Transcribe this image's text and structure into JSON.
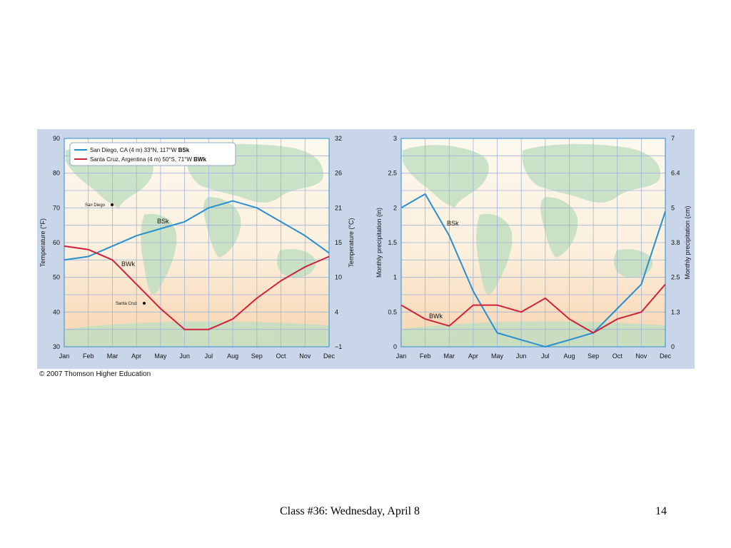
{
  "slide": {
    "footer_title": "Class #36: Wednesday, April 8",
    "page_number": "14",
    "copyright": "© 2007 Thomson Higher Education"
  },
  "colors": {
    "san_diego": "#2a8fd0",
    "santa_cruz": "#d0203a"
  },
  "chart_data": [
    {
      "type": "line",
      "months": [
        "Jan",
        "Feb",
        "Mar",
        "Apr",
        "May",
        "Jun",
        "Jul",
        "Aug",
        "Sep",
        "Oct",
        "Nov",
        "Dec"
      ],
      "ylabel": "Temperature (°F)",
      "y2label": "Temperature (°C)",
      "ylim": [
        30,
        90
      ],
      "yticks": [
        "90",
        "80",
        "70",
        "60",
        "50",
        "40",
        "30"
      ],
      "y2ticks": [
        "32",
        "26",
        "21",
        "15",
        "10",
        "4",
        "−1"
      ],
      "grid": true,
      "legend_position": "top-left",
      "series": [
        {
          "name": "San Diego, CA (4 m) 33°N, 117°W",
          "climate": "BSk",
          "color": "#2a8fd0",
          "values": [
            55,
            56,
            59,
            62,
            64,
            66,
            70,
            72,
            70,
            66,
            62,
            57
          ]
        },
        {
          "name": "Santa Cruz, Argentina (4 m) 50°S, 71°W",
          "climate": "BWk",
          "color": "#d0203a",
          "values": [
            59,
            58,
            55,
            48,
            41,
            35,
            35,
            38,
            44,
            49,
            53,
            56
          ]
        }
      ],
      "labels": {
        "bsk": "BSk",
        "bwk": "BWk"
      },
      "map_markers": {
        "san_diego": "San Diego",
        "santa_cruz": "Santa Cruz"
      }
    },
    {
      "type": "line",
      "months": [
        "Jan",
        "Feb",
        "Mar",
        "Apr",
        "May",
        "Jun",
        "Jul",
        "Aug",
        "Sep",
        "Oct",
        "Nov",
        "Dec"
      ],
      "ylabel": "Monthly precipitation (in)",
      "y2label": "Monthly precipitation (cm)",
      "ylim": [
        0,
        3
      ],
      "yticks": [
        "3",
        "2.5",
        "2",
        "1.5",
        "1",
        "0.5",
        "0"
      ],
      "y2ticks": [
        "7",
        "6.4",
        "5",
        "3.8",
        "2.5",
        "1.3",
        "0"
      ],
      "grid": true,
      "series": [
        {
          "climate": "BSk",
          "color": "#2a8fd0",
          "values": [
            2.0,
            2.2,
            1.6,
            0.8,
            0.2,
            0.1,
            0.0,
            0.1,
            0.2,
            0.55,
            0.9,
            1.95
          ]
        },
        {
          "climate": "BWk",
          "color": "#d0203a",
          "values": [
            0.6,
            0.4,
            0.3,
            0.6,
            0.6,
            0.5,
            0.7,
            0.4,
            0.2,
            0.4,
            0.5,
            0.9
          ]
        }
      ],
      "labels": {
        "bsk": "BSk",
        "bwk": "BWk"
      }
    }
  ]
}
